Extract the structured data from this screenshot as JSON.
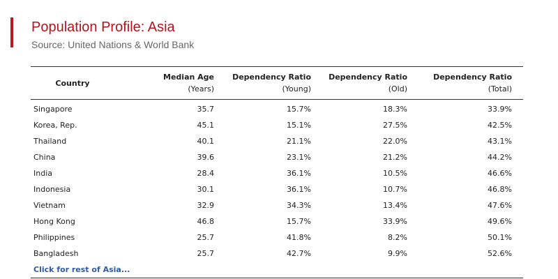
{
  "header": {
    "title": "Population Profile: Asia",
    "subtitle": "Source: United Nations & World Bank",
    "accent_color": "#c0161d"
  },
  "table": {
    "columns": [
      {
        "label": "Country",
        "sub": ""
      },
      {
        "label": "Median Age",
        "sub": "(Years)"
      },
      {
        "label": "Dependency Ratio",
        "sub": "(Young)"
      },
      {
        "label": "Dependency Ratio",
        "sub": "(Old)"
      },
      {
        "label": "Dependency Ratio",
        "sub": "(Total)"
      }
    ],
    "rows": [
      {
        "country": "Singapore",
        "median_age": "35.7",
        "young": "15.7%",
        "old": "18.3%",
        "total": "33.9%"
      },
      {
        "country": "Korea, Rep.",
        "median_age": "45.1",
        "young": "15.1%",
        "old": "27.5%",
        "total": "42.5%"
      },
      {
        "country": "Thailand",
        "median_age": "40.1",
        "young": "21.1%",
        "old": "22.0%",
        "total": "43.1%"
      },
      {
        "country": "China",
        "median_age": "39.6",
        "young": "23.1%",
        "old": "21.2%",
        "total": "44.2%"
      },
      {
        "country": "India",
        "median_age": "28.4",
        "young": "36.1%",
        "old": "10.5%",
        "total": "46.6%"
      },
      {
        "country": "Indonesia",
        "median_age": "30.1",
        "young": "36.1%",
        "old": "10.7%",
        "total": "46.8%"
      },
      {
        "country": "Vietnam",
        "median_age": "32.9",
        "young": "34.3%",
        "old": "13.4%",
        "total": "47.6%"
      },
      {
        "country": "Hong Kong",
        "median_age": "46.8",
        "young": "15.7%",
        "old": "33.9%",
        "total": "49.6%"
      },
      {
        "country": "Philippines",
        "median_age": "25.7",
        "young": "41.8%",
        "old": "8.2%",
        "total": "50.1%"
      },
      {
        "country": "Bangladesh",
        "median_age": "25.7",
        "young": "42.7%",
        "old": "9.9%",
        "total": "52.6%"
      }
    ],
    "more_link": "Click for rest of Asia..."
  }
}
